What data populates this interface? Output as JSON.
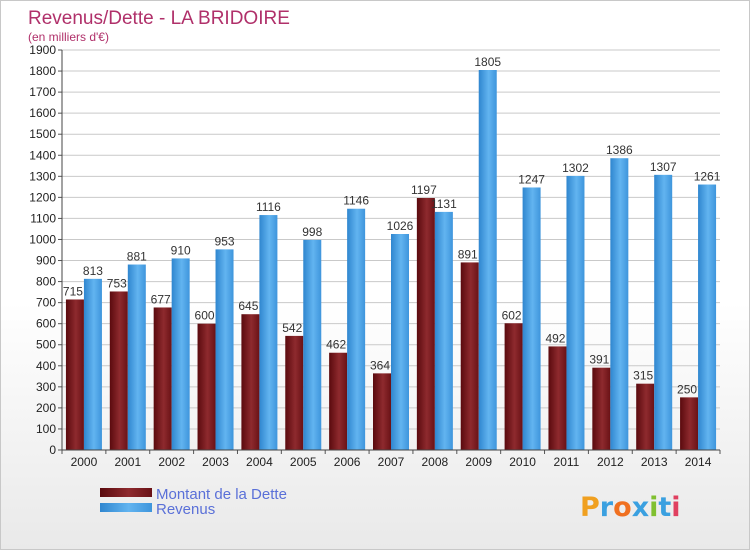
{
  "chart_data": {
    "type": "bar",
    "title": "Revenus/Dette - LA BRIDOIRE",
    "subtitle": "(en milliers d'€)",
    "categories": [
      "2000",
      "2001",
      "2002",
      "2003",
      "2004",
      "2005",
      "2006",
      "2007",
      "2008",
      "2009",
      "2010",
      "2011",
      "2012",
      "2013",
      "2014"
    ],
    "series": [
      {
        "name": "Montant de la Dette",
        "values": [
          715,
          753,
          677,
          600,
          645,
          542,
          462,
          364,
          1197,
          891,
          602,
          492,
          391,
          315,
          250
        ],
        "color": "#7a1a1e"
      },
      {
        "name": "Revenus",
        "values": [
          813,
          881,
          910,
          953,
          1116,
          998,
          1146,
          1026,
          1131,
          1805,
          1247,
          1302,
          1386,
          1307,
          1261
        ],
        "color": "#4aa3e6"
      }
    ],
    "ylim": [
      0,
      1900
    ],
    "ytick_step": 100,
    "grid": true,
    "legend_position": "bottom-left"
  },
  "logo": {
    "text": "Proxiti"
  }
}
